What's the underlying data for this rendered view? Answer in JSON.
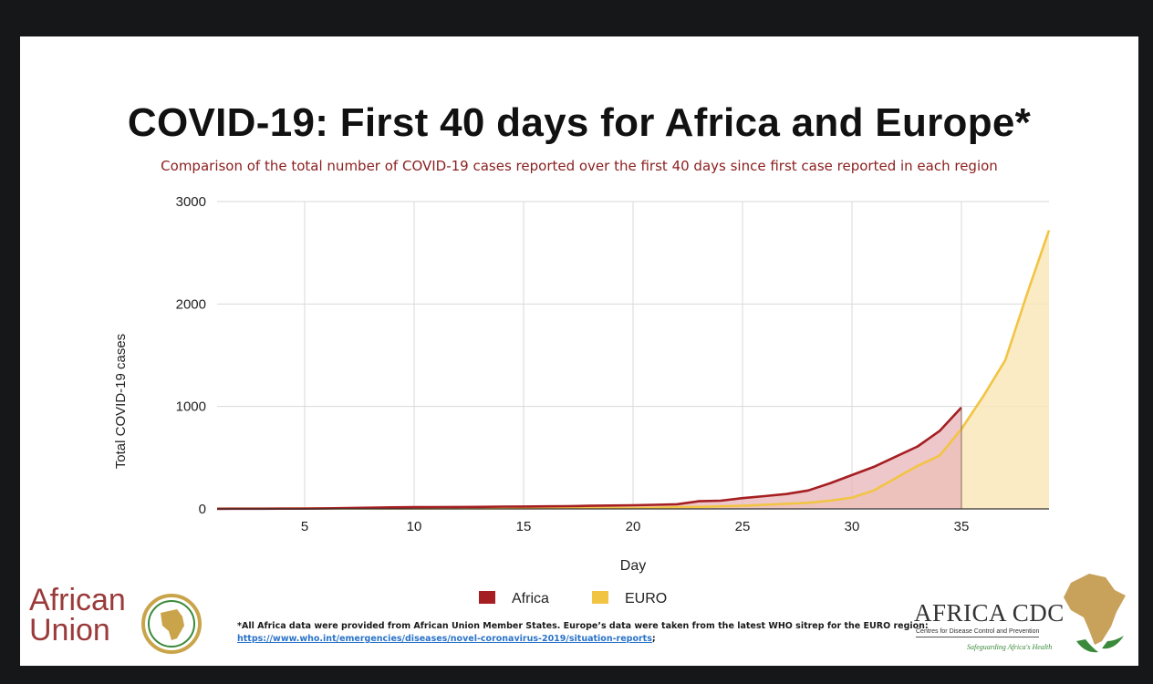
{
  "title": "COVID-19: First 40 days for Africa and Europe*",
  "subtitle": "Comparison of the total number of COVID-19 cases reported over the first 40 days since first case reported in each region",
  "footnote": {
    "text": "*All Africa data were provided from African Union Member States.  Europe’s data were taken from the latest WHO sitrep for the EURO region: ",
    "link": "https://www.who.int/emergencies/diseases/novel-coronavirus-2019/situation-reports",
    "suffix": ";"
  },
  "logos": {
    "african_union_line1": "African",
    "african_union_line2": "Union",
    "africa_cdc_name": "AFRICA CDC",
    "africa_cdc_sub": "Centres for Disease Control and Prevention",
    "africa_cdc_tagline": "Safeguarding Africa's Health"
  },
  "colors": {
    "africa": "#a51e22",
    "africa_fill": "#e8b4b8",
    "euro": "#f2c443",
    "euro_fill": "#fae7bb",
    "overlap_fill": "#f0b892",
    "grid": "#d9d9d9"
  },
  "chart_data": {
    "type": "area",
    "xlabel": "Day",
    "ylabel": "Total COVID-19 cases",
    "xlim": [
      1,
      39
    ],
    "ylim": [
      0,
      3000
    ],
    "xticks": [
      5,
      10,
      15,
      20,
      25,
      30,
      35
    ],
    "yticks": [
      0,
      1000,
      2000,
      3000
    ],
    "grid": true,
    "legend_position": "bottom",
    "series": [
      {
        "name": "Africa",
        "x": [
          1,
          2,
          3,
          4,
          5,
          6,
          7,
          8,
          9,
          10,
          11,
          12,
          13,
          14,
          15,
          16,
          17,
          18,
          19,
          20,
          21,
          22,
          23,
          24,
          25,
          26,
          27,
          28,
          29,
          30,
          31,
          32,
          33,
          34,
          35
        ],
        "values": [
          1,
          2,
          2,
          3,
          3,
          5,
          8,
          12,
          15,
          17,
          18,
          19,
          20,
          22,
          23,
          25,
          27,
          30,
          33,
          36,
          40,
          45,
          75,
          80,
          105,
          125,
          145,
          180,
          250,
          330,
          410,
          510,
          610,
          760,
          990
        ]
      },
      {
        "name": "EURO",
        "x": [
          1,
          2,
          3,
          4,
          5,
          6,
          7,
          8,
          9,
          10,
          11,
          12,
          13,
          14,
          15,
          16,
          17,
          18,
          19,
          20,
          21,
          22,
          23,
          24,
          25,
          26,
          27,
          28,
          29,
          30,
          31,
          32,
          33,
          34,
          35,
          36,
          37,
          38,
          39
        ],
        "values": [
          3,
          3,
          3,
          3,
          4,
          5,
          5,
          5,
          5,
          5,
          5,
          6,
          6,
          6,
          6,
          7,
          7,
          8,
          8,
          9,
          12,
          18,
          20,
          25,
          30,
          40,
          50,
          60,
          80,
          110,
          180,
          300,
          420,
          520,
          780,
          1100,
          1450,
          2100,
          2720
        ]
      }
    ]
  }
}
